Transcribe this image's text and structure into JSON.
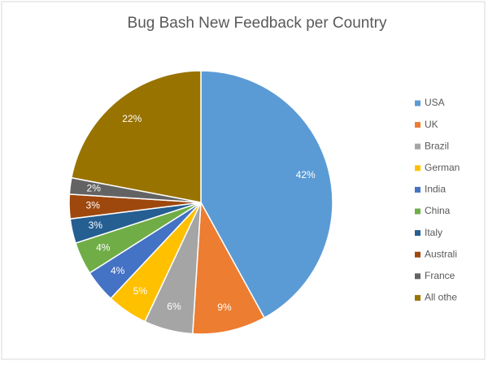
{
  "chart_data": {
    "type": "pie",
    "title": "Bug Bash New Feedback per Country",
    "categories": [
      "USA",
      "UK",
      "Brazil",
      "German",
      "India",
      "China",
      "Italy",
      "Australi",
      "France",
      "All othe"
    ],
    "values": [
      42,
      9,
      6,
      5,
      4,
      4,
      3,
      3,
      2,
      22
    ],
    "value_labels": [
      "42%",
      "9%",
      "6%",
      "5%",
      "4%",
      "4%",
      "3%",
      "3%",
      "2%",
      "22%"
    ],
    "colors": [
      "#5b9bd5",
      "#ed7d31",
      "#a5a5a5",
      "#ffc000",
      "#4472c4",
      "#70ad47",
      "#255e91",
      "#9e480e",
      "#636363",
      "#997300"
    ],
    "legend": "right"
  }
}
